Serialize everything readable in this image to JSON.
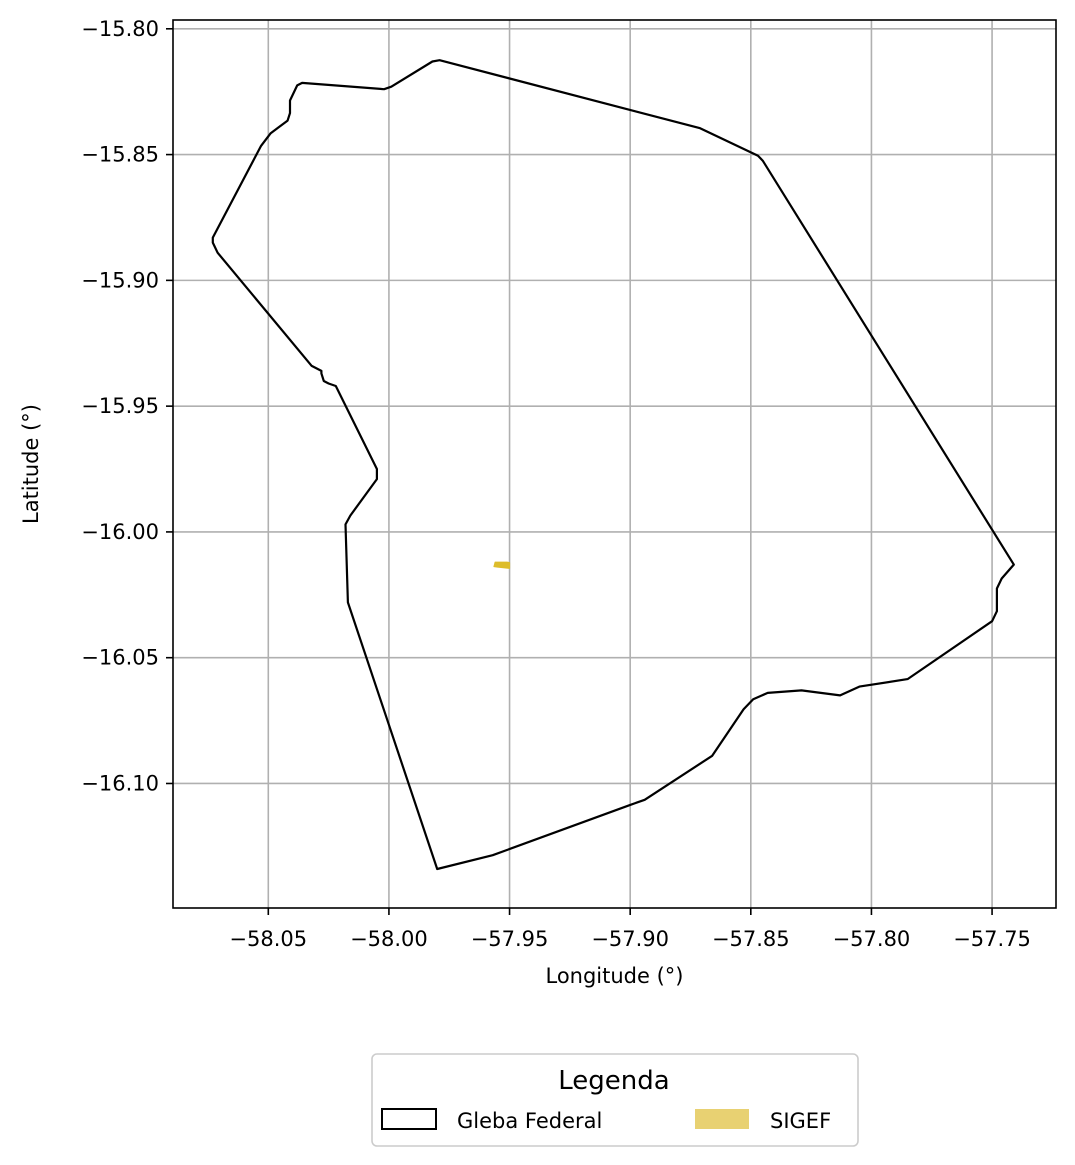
{
  "chart_data": {
    "type": "map",
    "xlabel": "Longitude (°)",
    "ylabel": "Latitude (°)",
    "xlim": [
      -58.0895,
      -57.7235
    ],
    "ylim": [
      -16.1495,
      -15.7965
    ],
    "grid": true,
    "x_ticks": [
      {
        "value": -58.05,
        "label": "−58.05"
      },
      {
        "value": -58.0,
        "label": "−58.00"
      },
      {
        "value": -57.95,
        "label": "−57.95"
      },
      {
        "value": -57.9,
        "label": "−57.90"
      },
      {
        "value": -57.85,
        "label": "−57.85"
      },
      {
        "value": -57.8,
        "label": "−57.80"
      },
      {
        "value": -57.75,
        "label": "−57.75"
      }
    ],
    "y_ticks": [
      {
        "value": -15.8,
        "label": "−15.80"
      },
      {
        "value": -15.85,
        "label": "−15.85"
      },
      {
        "value": -15.9,
        "label": "−15.90"
      },
      {
        "value": -15.95,
        "label": "−15.95"
      },
      {
        "value": -16.0,
        "label": "−16.00"
      },
      {
        "value": -16.05,
        "label": "−16.05"
      },
      {
        "value": -16.1,
        "label": "−16.10"
      }
    ],
    "layers": [
      {
        "name": "Gleba Federal",
        "edge_color": "#000000",
        "fill": "none",
        "polygon": [
          [
            -57.979,
            -15.8125
          ],
          [
            -57.871,
            -15.8395
          ],
          [
            -57.847,
            -15.8505
          ],
          [
            -57.845,
            -15.8525
          ],
          [
            -57.741,
            -16.013
          ],
          [
            -57.746,
            -16.0185
          ],
          [
            -57.748,
            -16.0225
          ],
          [
            -57.748,
            -16.0315
          ],
          [
            -57.75,
            -16.0355
          ],
          [
            -57.785,
            -16.0585
          ],
          [
            -57.805,
            -16.0615
          ],
          [
            -57.813,
            -16.065
          ],
          [
            -57.829,
            -16.063
          ],
          [
            -57.843,
            -16.064
          ],
          [
            -57.849,
            -16.0665
          ],
          [
            -57.853,
            -16.0705
          ],
          [
            -57.866,
            -16.089
          ],
          [
            -57.894,
            -16.1065
          ],
          [
            -57.9,
            -16.1085
          ],
          [
            -57.957,
            -16.1285
          ],
          [
            -57.98,
            -16.134
          ],
          [
            -58.017,
            -16.028
          ],
          [
            -58.018,
            -15.997
          ],
          [
            -58.016,
            -15.9935
          ],
          [
            -58.005,
            -15.979
          ],
          [
            -58.005,
            -15.975
          ],
          [
            -58.022,
            -15.942
          ],
          [
            -58.025,
            -15.941
          ],
          [
            -58.027,
            -15.94
          ],
          [
            -58.028,
            -15.937
          ],
          [
            -58.028,
            -15.936
          ],
          [
            -58.032,
            -15.934
          ],
          [
            -58.071,
            -15.889
          ],
          [
            -58.073,
            -15.885
          ],
          [
            -58.073,
            -15.883
          ],
          [
            -58.053,
            -15.8465
          ],
          [
            -58.049,
            -15.8415
          ],
          [
            -58.042,
            -15.8365
          ],
          [
            -58.041,
            -15.8335
          ],
          [
            -58.041,
            -15.8285
          ],
          [
            -58.038,
            -15.8225
          ],
          [
            -58.036,
            -15.8215
          ],
          [
            -58.002,
            -15.824
          ],
          [
            -57.999,
            -15.823
          ],
          [
            -57.982,
            -15.813
          ],
          [
            -57.979,
            -15.8125
          ]
        ]
      },
      {
        "name": "SIGEF",
        "fill_color": "#ddbd2b",
        "polygon": [
          [
            -57.956,
            -16.012
          ],
          [
            -57.951,
            -16.012
          ],
          [
            -57.95,
            -16.0122
          ],
          [
            -57.95,
            -16.0145
          ],
          [
            -57.955,
            -16.014
          ],
          [
            -57.9565,
            -16.0138
          ]
        ]
      }
    ],
    "legend": {
      "title": "Legenda",
      "placement": "bottom-center, below axes",
      "entries": [
        {
          "label": "Gleba Federal",
          "style": "outline",
          "color": "#000000"
        },
        {
          "label": "SIGEF",
          "style": "fill",
          "color": "#e8d172"
        }
      ]
    }
  }
}
